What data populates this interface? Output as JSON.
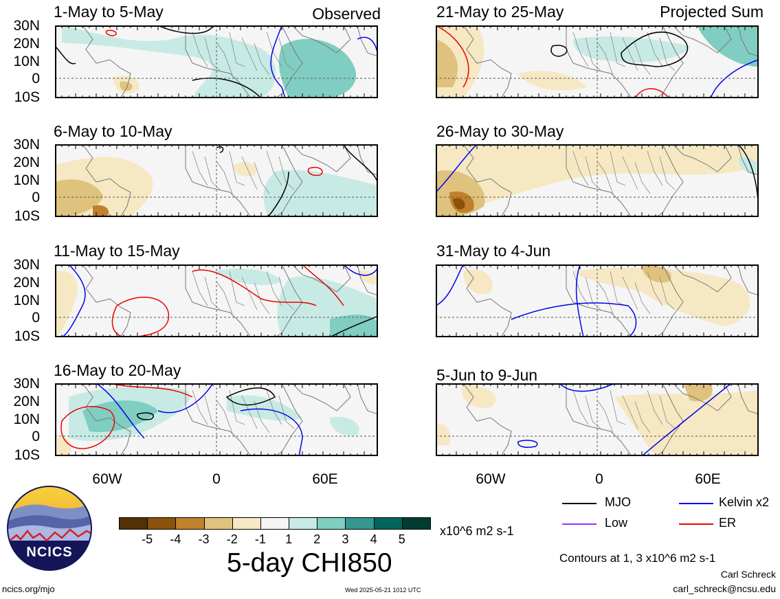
{
  "panels": [
    {
      "title": "1-May to 5-May",
      "corner": "Observed"
    },
    {
      "title": "6-May to 10-May",
      "corner": ""
    },
    {
      "title": "11-May to 15-May",
      "corner": ""
    },
    {
      "title": "16-May to 20-May",
      "corner": ""
    },
    {
      "title": "21-May to 25-May",
      "corner": "Projected Sum"
    },
    {
      "title": "26-May to 30-May",
      "corner": ""
    },
    {
      "title": "31-May to 4-Jun",
      "corner": ""
    },
    {
      "title": "5-Jun to 9-Jun",
      "corner": ""
    }
  ],
  "axes": {
    "lat_labels": [
      "30N",
      "20N",
      "10N",
      "0",
      "10S"
    ],
    "lon_labels": [
      "60W",
      "0",
      "60E"
    ]
  },
  "legend": {
    "items": [
      {
        "label": "MJO",
        "color": "#000000"
      },
      {
        "label": "Kelvin x2",
        "color": "#0000ee"
      },
      {
        "label": "Low",
        "color": "#9b30ff"
      },
      {
        "label": "ER",
        "color": "#ee0000"
      }
    ],
    "contour_note": "Contours at 1, 3 x10^6 m2 s-1"
  },
  "colorbar": {
    "ticks": [
      "-5",
      "-4",
      "-3",
      "-2",
      "-1",
      "1",
      "2",
      "3",
      "4",
      "5"
    ],
    "colors": [
      "#543005",
      "#8c510a",
      "#bf812d",
      "#dfc27d",
      "#f6e8c3",
      "#f5f5f5",
      "#c7eae5",
      "#80cdc1",
      "#35978f",
      "#01665e",
      "#003c30"
    ],
    "units": "x10^6 m2 s-1",
    "title": "5-day CHI850"
  },
  "logo": {
    "text": "NCICS"
  },
  "footer": {
    "url": "ncics.org/mjo",
    "timestamp": "Wed 2025-05-21 1012 UTC",
    "author": "Carl Schreck",
    "email": "carl_schreck@ncsu.edu"
  }
}
